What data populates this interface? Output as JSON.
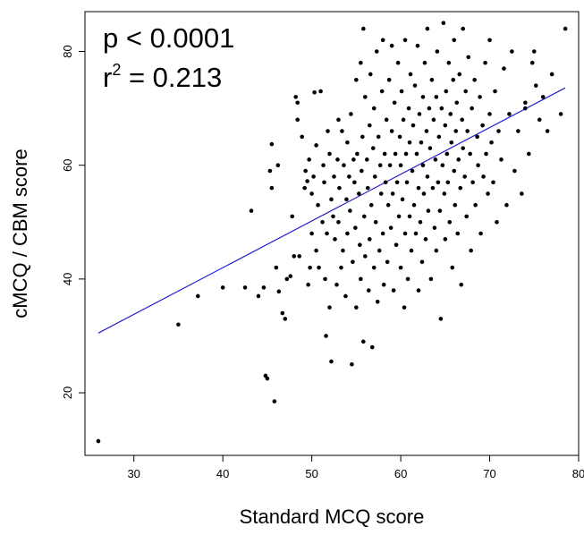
{
  "chart_data": {
    "type": "scatter",
    "xlabel": "Standard MCQ score",
    "ylabel": "cMCQ / CBM score",
    "xlim": [
      24.5,
      80
    ],
    "ylim": [
      9,
      87
    ],
    "xticks": [
      30,
      40,
      50,
      60,
      70,
      80
    ],
    "yticks": [
      20,
      40,
      60,
      80
    ],
    "annotations": {
      "p_value": "p < 0.0001",
      "r2_prefix": "r",
      "r2_exp": "2",
      "r2_value": " = 0.213"
    },
    "point_color": "#000000",
    "fit_line": {
      "color": "#2020d0",
      "x": [
        26,
        78.5
      ],
      "y": [
        30.5,
        73.6
      ]
    },
    "points": [
      [
        26,
        11.5
      ],
      [
        35,
        32
      ],
      [
        37.2,
        37
      ],
      [
        40,
        38.5
      ],
      [
        42.5,
        38.5
      ],
      [
        43.2,
        52
      ],
      [
        44,
        37
      ],
      [
        44.6,
        38.5
      ],
      [
        44.8,
        23
      ],
      [
        45,
        22.5
      ],
      [
        45.8,
        18.5
      ],
      [
        45.3,
        59
      ],
      [
        45.5,
        63.7
      ],
      [
        45.5,
        56
      ],
      [
        46,
        42
      ],
      [
        46.2,
        60
      ],
      [
        46.3,
        37.8
      ],
      [
        46.7,
        34
      ],
      [
        47,
        33
      ],
      [
        47.2,
        40
      ],
      [
        47.6,
        40.5
      ],
      [
        47.8,
        51
      ],
      [
        48,
        44
      ],
      [
        48.2,
        72
      ],
      [
        48.4,
        71
      ],
      [
        48.4,
        68
      ],
      [
        48.6,
        44
      ],
      [
        48.9,
        65
      ],
      [
        49.2,
        56
      ],
      [
        49.3,
        59
      ],
      [
        49.5,
        57.2
      ],
      [
        49.6,
        39
      ],
      [
        49.7,
        61
      ],
      [
        49.8,
        42
      ],
      [
        50,
        55
      ],
      [
        50,
        48
      ],
      [
        50.2,
        58
      ],
      [
        50.3,
        72.8
      ],
      [
        50.5,
        63.5
      ],
      [
        50.5,
        45
      ],
      [
        50.7,
        53
      ],
      [
        50.8,
        42
      ],
      [
        51,
        73
      ],
      [
        51.2,
        50
      ],
      [
        51.3,
        60
      ],
      [
        51.4,
        57
      ],
      [
        51.5,
        40
      ],
      [
        51.6,
        30
      ],
      [
        51.7,
        48
      ],
      [
        51.8,
        66
      ],
      [
        52,
        62
      ],
      [
        52,
        35
      ],
      [
        52.2,
        54
      ],
      [
        52.2,
        25.5
      ],
      [
        52.4,
        51
      ],
      [
        52.5,
        58
      ],
      [
        52.6,
        47
      ],
      [
        52.8,
        39
      ],
      [
        52.9,
        61
      ],
      [
        53,
        68
      ],
      [
        53,
        50
      ],
      [
        53.1,
        56
      ],
      [
        53.3,
        42
      ],
      [
        53.4,
        66
      ],
      [
        53.5,
        45
      ],
      [
        53.6,
        60
      ],
      [
        53.8,
        37
      ],
      [
        53.9,
        54
      ],
      [
        54,
        64
      ],
      [
        54,
        48
      ],
      [
        54.2,
        58
      ],
      [
        54.3,
        52
      ],
      [
        54.4,
        69
      ],
      [
        54.5,
        25
      ],
      [
        54.6,
        43
      ],
      [
        54.7,
        61
      ],
      [
        54.8,
        57
      ],
      [
        54.9,
        49
      ],
      [
        55,
        75
      ],
      [
        55,
        35
      ],
      [
        55.1,
        62
      ],
      [
        55.3,
        55
      ],
      [
        55.4,
        46
      ],
      [
        55.5,
        78
      ],
      [
        55.5,
        40
      ],
      [
        55.6,
        59
      ],
      [
        55.7,
        65
      ],
      [
        55.8,
        29
      ],
      [
        55.8,
        84
      ],
      [
        55.9,
        51
      ],
      [
        56,
        72
      ],
      [
        56,
        44
      ],
      [
        56.2,
        61
      ],
      [
        56.3,
        56
      ],
      [
        56.4,
        38
      ],
      [
        56.5,
        67
      ],
      [
        56.5,
        47
      ],
      [
        56.6,
        76
      ],
      [
        56.7,
        53
      ],
      [
        56.8,
        28
      ],
      [
        56.9,
        63
      ],
      [
        57,
        70
      ],
      [
        57,
        42
      ],
      [
        57.1,
        58
      ],
      [
        57.2,
        50
      ],
      [
        57.3,
        80
      ],
      [
        57.4,
        36
      ],
      [
        57.5,
        65
      ],
      [
        57.6,
        45
      ],
      [
        57.7,
        60
      ],
      [
        57.8,
        55
      ],
      [
        57.9,
        73
      ],
      [
        58,
        82
      ],
      [
        58,
        48
      ],
      [
        58.1,
        39
      ],
      [
        58.2,
        62
      ],
      [
        58.3,
        57
      ],
      [
        58.4,
        68
      ],
      [
        58.5,
        43
      ],
      [
        58.6,
        53
      ],
      [
        58.7,
        75
      ],
      [
        58.8,
        60
      ],
      [
        58.9,
        49
      ],
      [
        59,
        66
      ],
      [
        59,
        81
      ],
      [
        59.1,
        55
      ],
      [
        59.2,
        38
      ],
      [
        59.3,
        71
      ],
      [
        59.4,
        62
      ],
      [
        59.5,
        46
      ],
      [
        59.6,
        57
      ],
      [
        59.7,
        78
      ],
      [
        59.8,
        51
      ],
      [
        59.9,
        65
      ],
      [
        60,
        60
      ],
      [
        60,
        42
      ],
      [
        60.1,
        73
      ],
      [
        60.2,
        54
      ],
      [
        60.3,
        68
      ],
      [
        60.4,
        35
      ],
      [
        60.5,
        82
      ],
      [
        60.5,
        48
      ],
      [
        60.6,
        62
      ],
      [
        60.7,
        57
      ],
      [
        60.8,
        40
      ],
      [
        60.9,
        70
      ],
      [
        61,
        64
      ],
      [
        61,
        51
      ],
      [
        61.1,
        76
      ],
      [
        61.2,
        45
      ],
      [
        61.3,
        59
      ],
      [
        61.4,
        67
      ],
      [
        61.5,
        53
      ],
      [
        61.6,
        74
      ],
      [
        61.7,
        48
      ],
      [
        61.8,
        62
      ],
      [
        61.9,
        81
      ],
      [
        62,
        56
      ],
      [
        62,
        38
      ],
      [
        62.1,
        69
      ],
      [
        62.2,
        50
      ],
      [
        62.3,
        64
      ],
      [
        62.4,
        43
      ],
      [
        62.5,
        72
      ],
      [
        62.5,
        60
      ],
      [
        62.6,
        55
      ],
      [
        62.7,
        78
      ],
      [
        62.8,
        47
      ],
      [
        62.9,
        66
      ],
      [
        63,
        58
      ],
      [
        63,
        84
      ],
      [
        63.1,
        52
      ],
      [
        63.2,
        70
      ],
      [
        63.3,
        63
      ],
      [
        63.4,
        40
      ],
      [
        63.5,
        75
      ],
      [
        63.6,
        56
      ],
      [
        63.7,
        68
      ],
      [
        63.8,
        49
      ],
      [
        63.9,
        61
      ],
      [
        64,
        72
      ],
      [
        64,
        45
      ],
      [
        64.1,
        80
      ],
      [
        64.2,
        57
      ],
      [
        64.3,
        65
      ],
      [
        64.4,
        52
      ],
      [
        64.5,
        33
      ],
      [
        64.6,
        70
      ],
      [
        64.7,
        60
      ],
      [
        64.8,
        85
      ],
      [
        64.9,
        55
      ],
      [
        65,
        67
      ],
      [
        65,
        47
      ],
      [
        65.1,
        73
      ],
      [
        65.2,
        62
      ],
      [
        65.3,
        57
      ],
      [
        65.4,
        78
      ],
      [
        65.5,
        50
      ],
      [
        65.6,
        69
      ],
      [
        65.7,
        64
      ],
      [
        65.8,
        42
      ],
      [
        65.9,
        75
      ],
      [
        66,
        59
      ],
      [
        66,
        82
      ],
      [
        66.1,
        53
      ],
      [
        66.2,
        66
      ],
      [
        66.3,
        71
      ],
      [
        66.4,
        48
      ],
      [
        66.5,
        61
      ],
      [
        66.6,
        76
      ],
      [
        66.7,
        56
      ],
      [
        66.8,
        39
      ],
      [
        66.9,
        68
      ],
      [
        67,
        63
      ],
      [
        67,
        84
      ],
      [
        67.2,
        58
      ],
      [
        67.3,
        73
      ],
      [
        67.4,
        51
      ],
      [
        67.5,
        66
      ],
      [
        67.6,
        79
      ],
      [
        67.8,
        62
      ],
      [
        67.9,
        45
      ],
      [
        68,
        70
      ],
      [
        68.1,
        57
      ],
      [
        68.3,
        75
      ],
      [
        68.4,
        53
      ],
      [
        68.6,
        65
      ],
      [
        68.7,
        60
      ],
      [
        68.9,
        72
      ],
      [
        69,
        48
      ],
      [
        69.2,
        67
      ],
      [
        69.3,
        58
      ],
      [
        69.5,
        78
      ],
      [
        69.6,
        62
      ],
      [
        69.8,
        55
      ],
      [
        70,
        69
      ],
      [
        70,
        82
      ],
      [
        70.2,
        64
      ],
      [
        70.4,
        57
      ],
      [
        70.6,
        73
      ],
      [
        70.8,
        50
      ],
      [
        71,
        66
      ],
      [
        71.3,
        61
      ],
      [
        71.6,
        77
      ],
      [
        71.9,
        53
      ],
      [
        72.2,
        69
      ],
      [
        72.5,
        80
      ],
      [
        72.8,
        59
      ],
      [
        73.2,
        66
      ],
      [
        73.6,
        55
      ],
      [
        74,
        71
      ],
      [
        74.4,
        62
      ],
      [
        74.8,
        78
      ],
      [
        75.2,
        74
      ],
      [
        75.6,
        68
      ],
      [
        76,
        72
      ],
      [
        76.5,
        66
      ],
      [
        77,
        76
      ],
      [
        78,
        69
      ],
      [
        78.5,
        84
      ],
      [
        74,
        70
      ],
      [
        75,
        80
      ]
    ]
  }
}
